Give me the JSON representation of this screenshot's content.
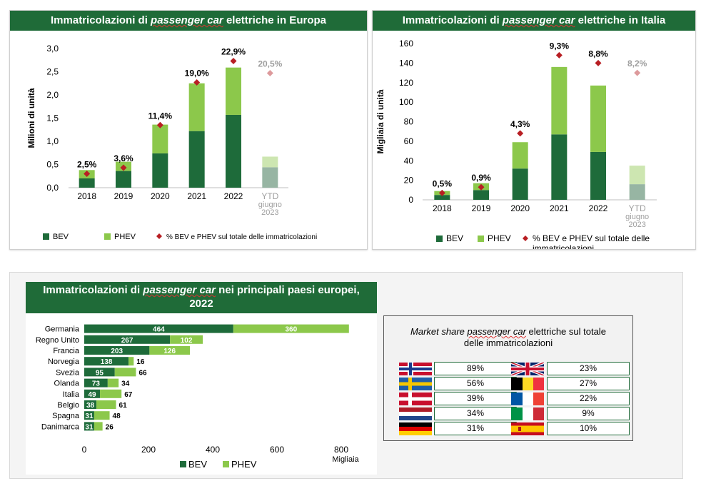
{
  "colors": {
    "bev": "#1e6b3a",
    "phev": "#8cc84b",
    "marker": "#b81e23",
    "header": "#1f6b38",
    "ytd_bev": "#97b5a3",
    "ytd_phev": "#cde6b1",
    "ytd_marker": "#dd9a9c",
    "ytd_label": "#9e9e9e"
  },
  "chart_data": [
    {
      "type": "bar",
      "title": "Immatricolazioni di passenger car elettriche in Europa",
      "title_pre": "Immatricolazioni di ",
      "title_em": "passenger car",
      "title_post": " elettriche in Europa",
      "ylabel": "Milioni di unità",
      "ylim": [
        0,
        3
      ],
      "yticks": [
        "0,0",
        "0,5",
        "1,0",
        "1,5",
        "2,0",
        "2,5",
        "3,0"
      ],
      "categories": [
        "2018",
        "2019",
        "2020",
        "2021",
        "2022",
        "YTD giugno 2023"
      ],
      "category_lines": [
        [
          "2018"
        ],
        [
          "2019"
        ],
        [
          "2020"
        ],
        [
          "2021"
        ],
        [
          "2022"
        ],
        [
          "YTD",
          "giugno",
          "2023"
        ]
      ],
      "series": [
        {
          "name": "BEV",
          "values": [
            0.2,
            0.36,
            0.74,
            1.22,
            1.57,
            0.44
          ]
        },
        {
          "name": "PHEV",
          "values": [
            0.18,
            0.2,
            0.62,
            1.03,
            1.02,
            0.23
          ]
        }
      ],
      "share_values": [
        0.3,
        0.43,
        1.35,
        2.27,
        2.73,
        2.47
      ],
      "share_labels": [
        "2,5%",
        "3,6%",
        "11,4%",
        "19,0%",
        "22,9%",
        "20,5%"
      ],
      "legend": {
        "bev": "BEV",
        "phev": "PHEV",
        "share": "% BEV e PHEV sul totale delle immatricolazioni"
      }
    },
    {
      "type": "bar",
      "title": "Immatricolazioni di passenger car elettriche in Italia",
      "title_pre": "Immatricolazioni di ",
      "title_em": "passenger car",
      "title_post": " elettriche in Italia",
      "ylabel": "Migliaia di unità",
      "ylim": [
        0,
        160
      ],
      "yticks": [
        "0",
        "20",
        "40",
        "60",
        "80",
        "100",
        "120",
        "140",
        "160"
      ],
      "categories": [
        "2018",
        "2019",
        "2020",
        "2021",
        "2022",
        "YTD giugno 2023"
      ],
      "category_lines": [
        [
          "2018"
        ],
        [
          "2019"
        ],
        [
          "2020"
        ],
        [
          "2021"
        ],
        [
          "2022"
        ],
        [
          "YTD",
          "giugno",
          "2023"
        ]
      ],
      "series": [
        {
          "name": "BEV",
          "values": [
            5,
            10,
            32,
            67,
            49,
            16
          ]
        },
        {
          "name": "PHEV",
          "values": [
            4,
            7,
            27,
            69,
            68,
            19
          ]
        }
      ],
      "share_values": [
        7,
        13,
        68,
        148,
        140,
        130
      ],
      "share_labels": [
        "0,5%",
        "0,9%",
        "4,3%",
        "9,3%",
        "8,8%",
        "8,2%"
      ],
      "legend": {
        "bev": "BEV",
        "phev": "PHEV",
        "share": "% BEV e PHEV sul totale delle immatricolazioni"
      }
    },
    {
      "type": "bar",
      "orientation": "horizontal",
      "stacked": true,
      "title": "Immatricolazioni di passenger car nei principali paesi europei, 2022",
      "title_pre": "Immatricolazioni di ",
      "title_em": "passenger car",
      "title_post": " nei principali paesi europei,",
      "title_line2": "2022",
      "xlabel": "Migliaia",
      "xlim": [
        0,
        800
      ],
      "xticks": [
        "0",
        "200",
        "400",
        "600",
        "800"
      ],
      "categories": [
        "Germania",
        "Regno Unito",
        "Francia",
        "Norvegia",
        "Svezia",
        "Olanda",
        "Italia",
        "Belgio",
        "Spagna",
        "Danimarca"
      ],
      "series": [
        {
          "name": "BEV",
          "values": [
            464,
            267,
            203,
            138,
            95,
            73,
            49,
            38,
            31,
            31
          ]
        },
        {
          "name": "PHEV",
          "values": [
            360,
            102,
            126,
            16,
            66,
            34,
            67,
            61,
            48,
            26
          ]
        }
      ],
      "legend": {
        "bev": "BEV",
        "phev": "PHEV"
      }
    }
  ],
  "market_share": {
    "title_pre": "Market share ",
    "title_em": "passenger car",
    "title_post": " elettriche sul totale",
    "title_line2": "delle immatricolazioni",
    "left": [
      {
        "flag": "norway-flag",
        "value": "89%"
      },
      {
        "flag": "sweden-flag",
        "value": "56%"
      },
      {
        "flag": "denmark-flag",
        "value": "39%"
      },
      {
        "flag": "netherlands-flag",
        "value": "34%"
      },
      {
        "flag": "germany-flag",
        "value": "31%"
      }
    ],
    "right": [
      {
        "flag": "uk-flag",
        "value": "23%"
      },
      {
        "flag": "belgium-flag",
        "value": "27%"
      },
      {
        "flag": "france-flag",
        "value": "22%"
      },
      {
        "flag": "italy-flag",
        "value": "9%"
      },
      {
        "flag": "spain-flag",
        "value": "10%"
      }
    ]
  }
}
